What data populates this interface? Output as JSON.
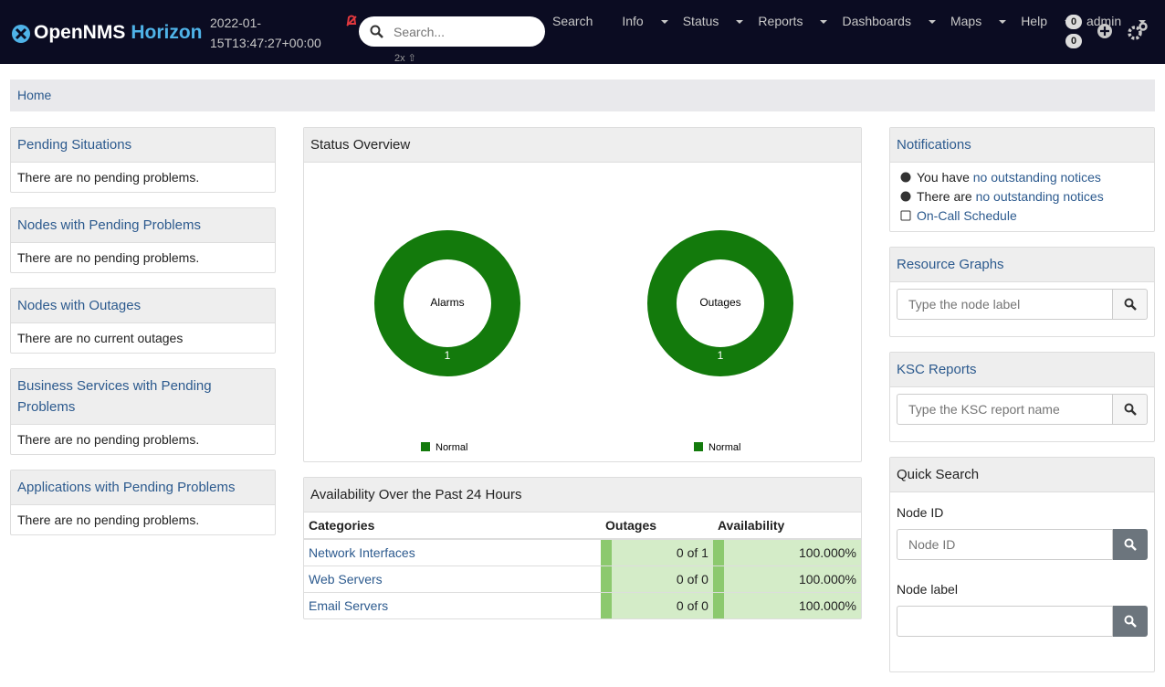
{
  "navbar": {
    "brand": "OpenNMS",
    "brand_suffix": "Horizon",
    "timestamp": "2022-01-15T13:47:27+00:00",
    "search_placeholder": "Search...",
    "search_hint": "2x ⇧",
    "menu": [
      "Search",
      "Info",
      "Status",
      "Reports",
      "Dashboards",
      "Maps",
      "Help",
      "admin"
    ],
    "badges": [
      0,
      0
    ]
  },
  "breadcrumb": "Home",
  "left_panels": [
    {
      "title": "Pending Situations",
      "body": "There are no pending problems."
    },
    {
      "title": "Nodes with Pending Problems",
      "body": "There are no pending problems."
    },
    {
      "title": "Nodes with Outages",
      "body": "There are no current outages"
    },
    {
      "title": "Business Services with Pending Problems",
      "body": "There are no pending problems."
    },
    {
      "title": "Applications with Pending Problems",
      "body": "There are no pending problems."
    }
  ],
  "status_overview": {
    "title": "Status Overview",
    "charts": [
      {
        "type": "pie",
        "label": "Alarms",
        "values": [
          1
        ],
        "legend": "Normal",
        "color": "#137a0c"
      },
      {
        "type": "pie",
        "label": "Outages",
        "values": [
          1
        ],
        "legend": "Normal",
        "color": "#137a0c"
      }
    ]
  },
  "availability": {
    "title": "Availability Over the Past 24 Hours",
    "columns": [
      "Categories",
      "Outages",
      "Availability"
    ],
    "rows": [
      [
        "Network Interfaces",
        "0 of 1",
        "100.000%"
      ],
      [
        "Web Servers",
        "0 of 0",
        "100.000%"
      ],
      [
        "Email Servers",
        "0 of 0",
        "100.000%"
      ]
    ]
  },
  "notifications": {
    "title": "Notifications",
    "items": [
      {
        "prefix": "You have",
        "link": "no outstanding notices"
      },
      {
        "prefix": "There are",
        "link": "no outstanding notices"
      },
      {
        "link": "On-Call Schedule"
      }
    ]
  },
  "resource_graphs": {
    "title": "Resource Graphs",
    "placeholder": "Type the node label"
  },
  "ksc_reports": {
    "title": "KSC Reports",
    "placeholder": "Type the KSC report name"
  },
  "quick_search": {
    "title": "Quick Search",
    "fields": [
      {
        "label": "Node ID",
        "placeholder": "Node ID"
      },
      {
        "label": "Node label"
      }
    ]
  }
}
